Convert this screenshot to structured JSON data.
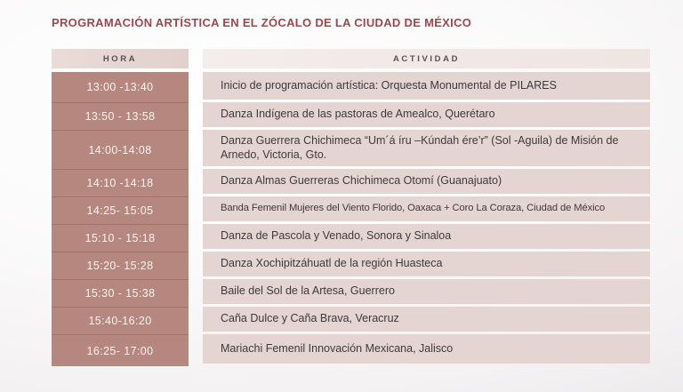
{
  "page": {
    "title": "PROGRAMACIÓN ARTÍSTICA EN EL ZÓCALO DE LA CIUDAD DE MÉXICO"
  },
  "table": {
    "columns": {
      "hora": "HORA",
      "actividad": "ACTIVIDAD"
    },
    "rows": [
      {
        "hora": "13:00 -13:40",
        "actividad": "Inicio de programación artística: Orquesta Monumental de PILARES"
      },
      {
        "hora": "13:50 - 13:58",
        "actividad": "Danza Indígena de las pastoras de Amealco, Querétaro"
      },
      {
        "hora": "14:00-14:08",
        "actividad": "Danza Guerrera Chichimeca “Um´á íru –Kúndah ére’r” (Sol -Aguila) de Misión de Arnedo, Victoria, Gto."
      },
      {
        "hora": "14:10 -14:18",
        "actividad": "Danza Almas Guerreras Chichimeca Otomí (Guanajuato)"
      },
      {
        "hora": "14:25- 15:05",
        "actividad": "Banda Femenil Mujeres del Viento Florido, Oaxaca + Coro La Coraza, Ciudad de México"
      },
      {
        "hora": "15:10 - 15:18",
        "actividad": "Danza de Pascola y Venado, Sonora y Sinaloa"
      },
      {
        "hora": "15:20- 15:28",
        "actividad": "Danza Xochipitzáhuatl de la región Huasteca"
      },
      {
        "hora": "15:30 - 15:38",
        "actividad": "Baile del Sol de la Artesa, Guerrero"
      },
      {
        "hora": "15:40-16:20",
        "actividad": "Caña Dulce y Caña Brava, Veracruz"
      },
      {
        "hora": "16:25- 17:00",
        "actividad": "Mariachi Femenil Innovación Mexicana, Jalisco"
      }
    ]
  },
  "colors": {
    "title": "#98494d",
    "hora_header_bg": "#e6d7d4",
    "actividad_header_bg": "#f2ebe9",
    "hora_cell_bg": "#b5877f",
    "hora_text": "#f9f2f1",
    "actividad_cell_bg": "#e4d5d2",
    "actividad_text": "#3e393b"
  }
}
